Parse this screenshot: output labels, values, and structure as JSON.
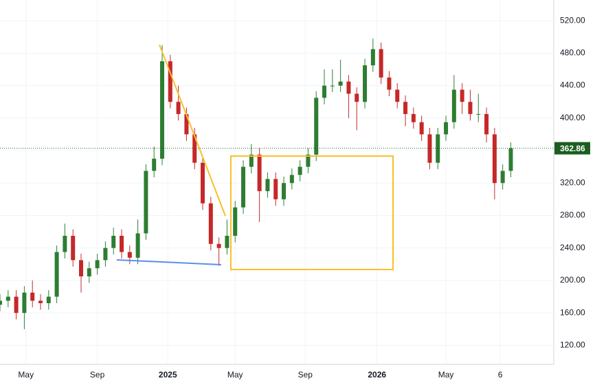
{
  "chart_data": {
    "type": "candlestick",
    "x": [
      0,
      2,
      4,
      6,
      8,
      10,
      12,
      14,
      16,
      18,
      20,
      22,
      24,
      26,
      28,
      30,
      32,
      34,
      36,
      38,
      40,
      42,
      44,
      46,
      48,
      50,
      52,
      54,
      56,
      58,
      60,
      62,
      64,
      66,
      68,
      70,
      72,
      74,
      76,
      78,
      80,
      82,
      84,
      86,
      88,
      90,
      92,
      94,
      96,
      98,
      100,
      102,
      104,
      106,
      108,
      110,
      112,
      114,
      116,
      118,
      120,
      122,
      124,
      126
    ],
    "open": [
      170,
      175,
      180,
      160,
      185,
      175,
      172,
      180,
      235,
      255,
      225,
      205,
      215,
      225,
      240,
      255,
      235,
      228,
      258,
      335,
      350,
      470,
      420,
      405,
      380,
      345,
      295,
      245,
      240,
      255,
      290,
      340,
      355,
      310,
      325,
      300,
      320,
      330,
      340,
      355,
      425,
      440,
      440,
      445,
      430,
      420,
      465,
      485,
      450,
      435,
      420,
      405,
      395,
      380,
      345,
      380,
      395,
      435,
      420,
      405,
      405,
      380,
      320,
      335
    ],
    "high": [
      183,
      188,
      188,
      193,
      200,
      183,
      188,
      243,
      270,
      263,
      233,
      223,
      233,
      248,
      265,
      263,
      243,
      275,
      343,
      365,
      490,
      478,
      440,
      413,
      388,
      353,
      303,
      253,
      275,
      298,
      348,
      368,
      363,
      333,
      333,
      328,
      338,
      348,
      363,
      433,
      460,
      460,
      472,
      453,
      438,
      473,
      498,
      493,
      458,
      443,
      428,
      413,
      403,
      388,
      388,
      403,
      453,
      443,
      435,
      430,
      413,
      388,
      343,
      370
    ],
    "low": [
      162,
      167,
      152,
      140,
      167,
      164,
      164,
      172,
      227,
      217,
      185,
      197,
      207,
      217,
      232,
      227,
      220,
      220,
      250,
      327,
      342,
      412,
      397,
      372,
      337,
      287,
      237,
      218,
      232,
      247,
      282,
      332,
      272,
      302,
      292,
      292,
      312,
      322,
      332,
      347,
      417,
      432,
      432,
      400,
      385,
      412,
      457,
      442,
      427,
      412,
      390,
      387,
      372,
      337,
      337,
      372,
      387,
      405,
      397,
      395,
      370,
      300,
      312,
      327
    ],
    "close": [
      175,
      180,
      160,
      185,
      175,
      172,
      180,
      235,
      255,
      225,
      205,
      215,
      225,
      240,
      255,
      235,
      228,
      258,
      335,
      350,
      470,
      420,
      405,
      380,
      345,
      295,
      245,
      240,
      255,
      290,
      340,
      355,
      310,
      325,
      300,
      320,
      330,
      340,
      355,
      425,
      440,
      440,
      445,
      430,
      420,
      465,
      485,
      450,
      435,
      420,
      405,
      395,
      380,
      345,
      380,
      395,
      435,
      420,
      405,
      405,
      380,
      320,
      335,
      362.86
    ],
    "up_color": "#2e7d32",
    "down_color": "#c62828",
    "last_price": 362.86,
    "last_price_color": "#1b5e20",
    "xlim": [
      0,
      136.6
    ],
    "xticks": [
      {
        "value": 6.4,
        "label": "May"
      },
      {
        "value": 24,
        "label": "Sep"
      },
      {
        "value": 41.4,
        "label": "2025"
      },
      {
        "value": 58,
        "label": "May"
      },
      {
        "value": 75.3,
        "label": "Sep"
      },
      {
        "value": 93,
        "label": "2026"
      },
      {
        "value": 110,
        "label": "May"
      },
      {
        "value": 123.4,
        "label": "6"
      }
    ],
    "ylim": [
      96.6,
      545.5
    ],
    "yticks": [
      {
        "value": 120,
        "label": "120.00"
      },
      {
        "value": 160,
        "label": "160.00"
      },
      {
        "value": 200,
        "label": "200.00"
      },
      {
        "value": 240,
        "label": "240.00"
      },
      {
        "value": 280,
        "label": "280.00"
      },
      {
        "value": 320,
        "label": "320.00"
      },
      {
        "value": 360,
        "label": "360.00"
      },
      {
        "value": 400,
        "label": "400.00"
      },
      {
        "value": 440,
        "label": "440.00"
      },
      {
        "value": 480,
        "label": "480.00"
      },
      {
        "value": 520,
        "label": "520.00"
      }
    ],
    "grid": true
  }
}
